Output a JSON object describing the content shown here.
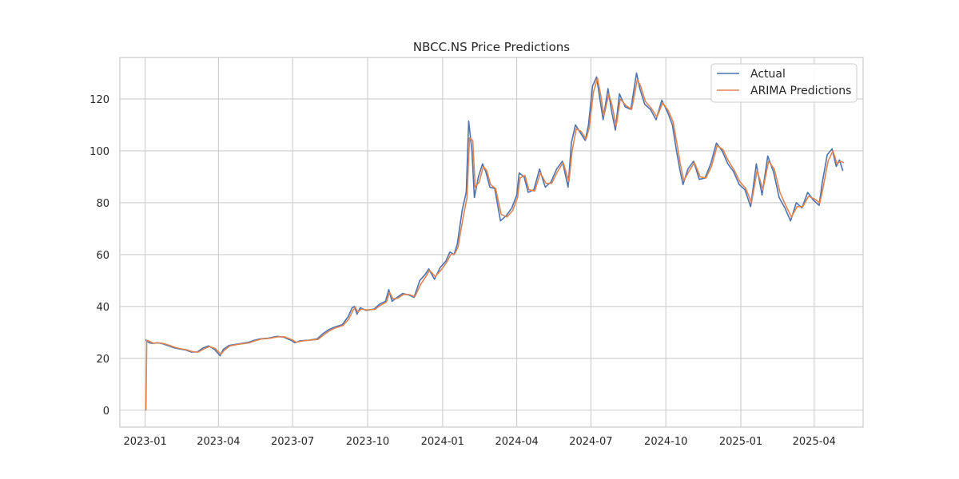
{
  "chart_data": {
    "type": "line",
    "title": "NBCC.NS Price Predictions",
    "xlabel": "",
    "ylabel": "",
    "xlim": [
      "2022-12-01",
      "2025-05-31"
    ],
    "ylim": [
      -6.5,
      136
    ],
    "grid": true,
    "legend_position": "top-right",
    "x_ticks": [
      "2023-01",
      "2023-04",
      "2023-07",
      "2023-10",
      "2024-01",
      "2024-04",
      "2024-07",
      "2024-10",
      "2025-01",
      "2025-04"
    ],
    "y_ticks": [
      0,
      20,
      40,
      60,
      80,
      100,
      120
    ],
    "colors": {
      "actual": "#4c72b0",
      "predictions": "#dd8452",
      "grid": "#cccccc",
      "frame": "#cccccc"
    },
    "series": [
      {
        "name": "Actual",
        "points": [
          [
            "2023-01-02",
            27.0
          ],
          [
            "2023-01-06",
            26.0
          ],
          [
            "2023-01-10",
            25.8
          ],
          [
            "2023-01-16",
            26.0
          ],
          [
            "2023-01-23",
            25.6
          ],
          [
            "2023-01-30",
            24.8
          ],
          [
            "2023-02-06",
            24.0
          ],
          [
            "2023-02-13",
            23.6
          ],
          [
            "2023-02-20",
            23.2
          ],
          [
            "2023-02-27",
            22.4
          ],
          [
            "2023-03-06",
            22.5
          ],
          [
            "2023-03-13",
            24.0
          ],
          [
            "2023-03-20",
            24.8
          ],
          [
            "2023-03-27",
            23.5
          ],
          [
            "2023-04-03",
            21.0
          ],
          [
            "2023-04-07",
            23.5
          ],
          [
            "2023-04-14",
            25.0
          ],
          [
            "2023-04-24",
            25.5
          ],
          [
            "2023-05-08",
            26.2
          ],
          [
            "2023-05-15",
            27.0
          ],
          [
            "2023-05-22",
            27.5
          ],
          [
            "2023-06-01",
            27.8
          ],
          [
            "2023-06-12",
            28.5
          ],
          [
            "2023-06-20",
            28.2
          ],
          [
            "2023-06-30",
            26.8
          ],
          [
            "2023-07-04",
            26.0
          ],
          [
            "2023-07-10",
            26.8
          ],
          [
            "2023-07-20",
            27.0
          ],
          [
            "2023-07-31",
            27.5
          ],
          [
            "2023-08-07",
            29.5
          ],
          [
            "2023-08-14",
            31.0
          ],
          [
            "2023-08-21",
            32.0
          ],
          [
            "2023-08-31",
            33.0
          ],
          [
            "2023-09-07",
            36.0
          ],
          [
            "2023-09-12",
            39.5
          ],
          [
            "2023-09-15",
            40.0
          ],
          [
            "2023-09-18",
            37.0
          ],
          [
            "2023-09-22",
            39.5
          ],
          [
            "2023-09-29",
            38.5
          ],
          [
            "2023-10-09",
            39.0
          ],
          [
            "2023-10-16",
            41.0
          ],
          [
            "2023-10-23",
            42.0
          ],
          [
            "2023-10-27",
            46.5
          ],
          [
            "2023-10-31",
            42.0
          ],
          [
            "2023-11-06",
            43.5
          ],
          [
            "2023-11-13",
            45.0
          ],
          [
            "2023-11-20",
            44.5
          ],
          [
            "2023-11-27",
            43.5
          ],
          [
            "2023-12-04",
            50.0
          ],
          [
            "2023-12-11",
            52.5
          ],
          [
            "2023-12-15",
            54.5
          ],
          [
            "2023-12-22",
            50.5
          ],
          [
            "2023-12-29",
            55.0
          ],
          [
            "2024-01-05",
            57.5
          ],
          [
            "2024-01-10",
            61.0
          ],
          [
            "2024-01-15",
            60.0
          ],
          [
            "2024-01-19",
            64.0
          ],
          [
            "2024-01-25",
            77.0
          ],
          [
            "2024-01-30",
            84.0
          ],
          [
            "2024-02-02",
            111.5
          ],
          [
            "2024-02-06",
            100.0
          ],
          [
            "2024-02-09",
            82.0
          ],
          [
            "2024-02-14",
            90.0
          ],
          [
            "2024-02-19",
            95.0
          ],
          [
            "2024-02-23",
            92.0
          ],
          [
            "2024-02-28",
            86.0
          ],
          [
            "2024-03-05",
            85.5
          ],
          [
            "2024-03-12",
            73.0
          ],
          [
            "2024-03-19",
            75.0
          ],
          [
            "2024-03-26",
            78.0
          ],
          [
            "2024-04-01",
            83.0
          ],
          [
            "2024-04-04",
            91.5
          ],
          [
            "2024-04-10",
            90.0
          ],
          [
            "2024-04-15",
            84.0
          ],
          [
            "2024-04-22",
            85.0
          ],
          [
            "2024-04-29",
            93.0
          ],
          [
            "2024-05-06",
            86.0
          ],
          [
            "2024-05-13",
            88.0
          ],
          [
            "2024-05-20",
            93.0
          ],
          [
            "2024-05-27",
            96.0
          ],
          [
            "2024-06-03",
            86.0
          ],
          [
            "2024-06-07",
            103.0
          ],
          [
            "2024-06-12",
            110.0
          ],
          [
            "2024-06-18",
            107.0
          ],
          [
            "2024-06-24",
            104.0
          ],
          [
            "2024-06-28",
            110.0
          ],
          [
            "2024-07-03",
            125.0
          ],
          [
            "2024-07-08",
            128.5
          ],
          [
            "2024-07-12",
            120.0
          ],
          [
            "2024-07-16",
            112.0
          ],
          [
            "2024-07-22",
            124.0
          ],
          [
            "2024-07-26",
            116.0
          ],
          [
            "2024-07-31",
            108.0
          ],
          [
            "2024-08-05",
            122.0
          ],
          [
            "2024-08-12",
            117.0
          ],
          [
            "2024-08-19",
            116.0
          ],
          [
            "2024-08-26",
            130.0
          ],
          [
            "2024-08-30",
            124.0
          ],
          [
            "2024-09-05",
            118.0
          ],
          [
            "2024-09-12",
            116.0
          ],
          [
            "2024-09-19",
            112.0
          ],
          [
            "2024-09-26",
            119.5
          ],
          [
            "2024-10-03",
            115.0
          ],
          [
            "2024-10-09",
            110.0
          ],
          [
            "2024-10-14",
            100.0
          ],
          [
            "2024-10-18",
            93.0
          ],
          [
            "2024-10-22",
            87.0
          ],
          [
            "2024-10-28",
            93.0
          ],
          [
            "2024-11-04",
            96.0
          ],
          [
            "2024-11-11",
            89.0
          ],
          [
            "2024-11-18",
            89.5
          ],
          [
            "2024-11-25",
            95.0
          ],
          [
            "2024-12-02",
            103.0
          ],
          [
            "2024-12-09",
            100.0
          ],
          [
            "2024-12-16",
            95.0
          ],
          [
            "2024-12-23",
            92.0
          ],
          [
            "2024-12-30",
            87.0
          ],
          [
            "2025-01-06",
            85.0
          ],
          [
            "2025-01-13",
            78.5
          ],
          [
            "2025-01-20",
            95.0
          ],
          [
            "2025-01-27",
            83.0
          ],
          [
            "2025-02-03",
            98.0
          ],
          [
            "2025-02-10",
            92.0
          ],
          [
            "2025-02-17",
            82.0
          ],
          [
            "2025-02-24",
            78.0
          ],
          [
            "2025-03-03",
            73.0
          ],
          [
            "2025-03-10",
            80.0
          ],
          [
            "2025-03-17",
            78.0
          ],
          [
            "2025-03-24",
            84.0
          ],
          [
            "2025-03-31",
            81.0
          ],
          [
            "2025-04-07",
            79.0
          ],
          [
            "2025-04-11",
            88.0
          ],
          [
            "2025-04-17",
            98.5
          ],
          [
            "2025-04-23",
            100.8
          ],
          [
            "2025-04-28",
            94.0
          ],
          [
            "2025-05-02",
            96.5
          ],
          [
            "2025-05-06",
            92.5
          ]
        ]
      },
      {
        "name": "ARIMA Predictions",
        "points": [
          [
            "2023-01-02",
            0.0
          ],
          [
            "2023-01-03",
            27.0
          ],
          [
            "2023-01-07",
            26.5
          ],
          [
            "2023-01-11",
            25.8
          ],
          [
            "2023-01-17",
            26.0
          ],
          [
            "2023-01-24",
            25.7
          ],
          [
            "2023-01-31",
            25.0
          ],
          [
            "2023-02-07",
            24.2
          ],
          [
            "2023-02-14",
            23.7
          ],
          [
            "2023-02-21",
            23.3
          ],
          [
            "2023-02-28",
            22.6
          ],
          [
            "2023-03-07",
            22.4
          ],
          [
            "2023-03-14",
            23.6
          ],
          [
            "2023-03-21",
            24.6
          ],
          [
            "2023-03-28",
            23.8
          ],
          [
            "2023-04-04",
            21.6
          ],
          [
            "2023-04-08",
            23.0
          ],
          [
            "2023-04-15",
            24.8
          ],
          [
            "2023-04-25",
            25.4
          ],
          [
            "2023-05-09",
            26.0
          ],
          [
            "2023-05-16",
            26.8
          ],
          [
            "2023-05-23",
            27.4
          ],
          [
            "2023-06-02",
            27.7
          ],
          [
            "2023-06-13",
            28.3
          ],
          [
            "2023-06-21",
            28.3
          ],
          [
            "2023-07-01",
            27.1
          ],
          [
            "2023-07-05",
            26.2
          ],
          [
            "2023-07-11",
            26.6
          ],
          [
            "2023-07-21",
            27.0
          ],
          [
            "2023-08-01",
            27.3
          ],
          [
            "2023-08-08",
            29.0
          ],
          [
            "2023-08-15",
            30.6
          ],
          [
            "2023-08-22",
            31.7
          ],
          [
            "2023-09-01",
            32.7
          ],
          [
            "2023-09-08",
            35.2
          ],
          [
            "2023-09-13",
            38.5
          ],
          [
            "2023-09-16",
            39.7
          ],
          [
            "2023-09-19",
            37.8
          ],
          [
            "2023-09-23",
            39.0
          ],
          [
            "2023-09-30",
            38.7
          ],
          [
            "2023-10-10",
            38.9
          ],
          [
            "2023-10-17",
            40.5
          ],
          [
            "2023-10-24",
            41.7
          ],
          [
            "2023-10-28",
            45.5
          ],
          [
            "2023-11-01",
            43.0
          ],
          [
            "2023-11-07",
            43.2
          ],
          [
            "2023-11-14",
            44.6
          ],
          [
            "2023-11-21",
            44.6
          ],
          [
            "2023-11-28",
            43.8
          ],
          [
            "2023-12-05",
            48.5
          ],
          [
            "2023-12-12",
            51.8
          ],
          [
            "2023-12-16",
            54.0
          ],
          [
            "2023-12-23",
            51.5
          ],
          [
            "2023-12-30",
            54.0
          ],
          [
            "2024-01-06",
            57.0
          ],
          [
            "2024-01-11",
            60.0
          ],
          [
            "2024-01-16",
            60.3
          ],
          [
            "2024-01-20",
            63.0
          ],
          [
            "2024-01-26",
            74.0
          ],
          [
            "2024-01-31",
            82.0
          ],
          [
            "2024-02-03",
            105.0
          ],
          [
            "2024-02-07",
            104.0
          ],
          [
            "2024-02-10",
            86.0
          ],
          [
            "2024-02-15",
            88.0
          ],
          [
            "2024-02-20",
            94.0
          ],
          [
            "2024-02-24",
            92.5
          ],
          [
            "2024-02-29",
            87.0
          ],
          [
            "2024-03-06",
            85.5
          ],
          [
            "2024-03-13",
            75.5
          ],
          [
            "2024-03-20",
            74.5
          ],
          [
            "2024-03-27",
            77.0
          ],
          [
            "2024-04-02",
            82.0
          ],
          [
            "2024-04-05",
            89.5
          ],
          [
            "2024-04-11",
            90.5
          ],
          [
            "2024-04-16",
            85.0
          ],
          [
            "2024-04-23",
            84.5
          ],
          [
            "2024-04-30",
            91.5
          ],
          [
            "2024-05-07",
            87.5
          ],
          [
            "2024-05-14",
            87.5
          ],
          [
            "2024-05-21",
            92.0
          ],
          [
            "2024-05-28",
            95.5
          ],
          [
            "2024-06-04",
            88.0
          ],
          [
            "2024-06-08",
            100.0
          ],
          [
            "2024-06-13",
            108.5
          ],
          [
            "2024-06-19",
            107.5
          ],
          [
            "2024-06-25",
            104.5
          ],
          [
            "2024-06-29",
            109.0
          ],
          [
            "2024-07-04",
            122.5
          ],
          [
            "2024-07-09",
            128.0
          ],
          [
            "2024-07-13",
            121.5
          ],
          [
            "2024-07-17",
            113.5
          ],
          [
            "2024-07-23",
            122.0
          ],
          [
            "2024-07-27",
            117.5
          ],
          [
            "2024-08-01",
            109.5
          ],
          [
            "2024-08-06",
            120.0
          ],
          [
            "2024-08-13",
            117.5
          ],
          [
            "2024-08-20",
            116.0
          ],
          [
            "2024-08-27",
            127.5
          ],
          [
            "2024-08-31",
            125.0
          ],
          [
            "2024-09-06",
            119.0
          ],
          [
            "2024-09-13",
            116.5
          ],
          [
            "2024-09-20",
            113.0
          ],
          [
            "2024-09-27",
            118.5
          ],
          [
            "2024-10-04",
            115.5
          ],
          [
            "2024-10-10",
            111.0
          ],
          [
            "2024-10-15",
            102.0
          ],
          [
            "2024-10-19",
            94.5
          ],
          [
            "2024-10-23",
            88.5
          ],
          [
            "2024-10-29",
            92.0
          ],
          [
            "2024-11-05",
            95.5
          ],
          [
            "2024-11-12",
            90.0
          ],
          [
            "2024-11-19",
            89.5
          ],
          [
            "2024-11-26",
            94.0
          ],
          [
            "2024-12-03",
            102.0
          ],
          [
            "2024-12-10",
            100.5
          ],
          [
            "2024-12-17",
            96.0
          ],
          [
            "2024-12-24",
            92.5
          ],
          [
            "2024-12-31",
            88.0
          ],
          [
            "2025-01-07",
            85.5
          ],
          [
            "2025-01-14",
            80.0
          ],
          [
            "2025-01-21",
            92.5
          ],
          [
            "2025-01-28",
            85.0
          ],
          [
            "2025-02-04",
            96.0
          ],
          [
            "2025-02-11",
            93.0
          ],
          [
            "2025-02-18",
            84.0
          ],
          [
            "2025-02-25",
            79.0
          ],
          [
            "2025-03-04",
            74.5
          ],
          [
            "2025-03-11",
            78.5
          ],
          [
            "2025-03-18",
            78.5
          ],
          [
            "2025-03-25",
            82.5
          ],
          [
            "2025-04-01",
            81.5
          ],
          [
            "2025-04-08",
            80.0
          ],
          [
            "2025-04-12",
            86.0
          ],
          [
            "2025-04-18",
            96.0
          ],
          [
            "2025-04-24",
            100.0
          ],
          [
            "2025-04-29",
            95.0
          ],
          [
            "2025-05-03",
            96.0
          ],
          [
            "2025-05-07",
            95.5
          ]
        ]
      }
    ]
  }
}
